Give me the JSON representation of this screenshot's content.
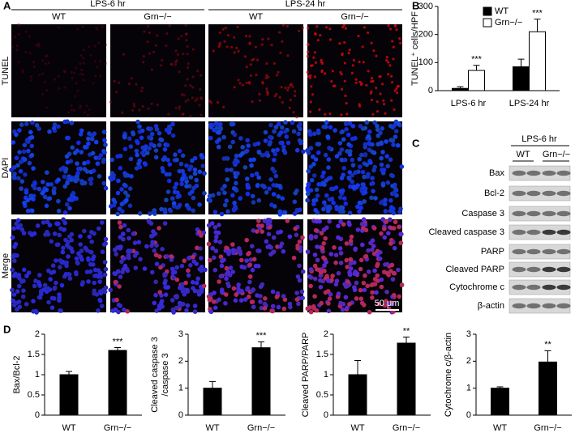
{
  "panel_labels": [
    "A",
    "B",
    "C",
    "D"
  ],
  "panel_a": {
    "groups": [
      "LPS-6 hr",
      "LPS-24 hr"
    ],
    "columns": [
      "WT",
      "Grn−/−",
      "WT",
      "Grn−/−"
    ],
    "rows": [
      "TUNEL",
      "DAPI",
      "Merge"
    ],
    "scale_bar": "50 μm"
  },
  "panel_c": {
    "header": "LPS-6 hr",
    "columns": [
      "WT",
      "Grn−/−"
    ],
    "rows": [
      "Bax",
      "Bcl-2",
      "Caspase 3",
      "Cleaved caspase 3",
      "PARP",
      "Cleaved PARP",
      "Cytochrome c",
      "β-actin"
    ]
  },
  "chart_data": [
    {
      "type": "bar",
      "ylabel": "TUNEL⁺ cells/HPF",
      "categories": [
        "LPS-6 hr",
        "LPS-24 hr"
      ],
      "series": [
        {
          "name": "WT",
          "color": "#000000",
          "values": [
            8,
            85
          ],
          "errors": [
            6,
            27
          ]
        },
        {
          "name": "Grn−/−",
          "color": "#ffffff",
          "values": [
            72,
            210
          ],
          "errors": [
            18,
            45
          ],
          "annotations": [
            "***",
            "***"
          ]
        }
      ],
      "ylim": [
        0,
        300
      ],
      "yticks": [
        0,
        100,
        200,
        300
      ],
      "legend": "top"
    },
    {
      "type": "bar",
      "ylabel": [
        "Bax/Bcl-2"
      ],
      "categories": [
        "WT",
        "Grn−/−"
      ],
      "values": [
        1.0,
        1.6
      ],
      "errors": [
        0.08,
        0.07
      ],
      "annotations": [
        null,
        "***"
      ],
      "color": "#000000",
      "ylim": [
        0,
        2
      ],
      "yticks": [
        0,
        0.5,
        1,
        1.5,
        2
      ]
    },
    {
      "type": "bar",
      "ylabel": [
        "Cleaved caspase 3",
        "/caspase 3"
      ],
      "categories": [
        "WT",
        "Grn−/−"
      ],
      "values": [
        1.0,
        2.5
      ],
      "errors": [
        0.25,
        0.22
      ],
      "annotations": [
        null,
        "***"
      ],
      "color": "#000000",
      "ylim": [
        0,
        3
      ],
      "yticks": [
        0,
        1,
        2,
        3
      ]
    },
    {
      "type": "bar",
      "ylabel": [
        "Cleaved PARP/PARP"
      ],
      "categories": [
        "WT",
        "Grn−/−"
      ],
      "values": [
        1.0,
        1.78
      ],
      "errors": [
        0.35,
        0.15
      ],
      "annotations": [
        null,
        "**"
      ],
      "color": "#000000",
      "ylim": [
        0,
        2
      ],
      "yticks": [
        0,
        0.5,
        1,
        1.5,
        2
      ]
    },
    {
      "type": "bar",
      "ylabel": [
        "Cytochrome c/β-actin"
      ],
      "categories": [
        "WT",
        "Grn−/−"
      ],
      "values": [
        1.0,
        1.97
      ],
      "errors": [
        0.05,
        0.42
      ],
      "annotations": [
        null,
        "**"
      ],
      "color": "#000000",
      "ylim": [
        0,
        3
      ],
      "yticks": [
        0,
        1,
        2,
        3
      ]
    }
  ]
}
